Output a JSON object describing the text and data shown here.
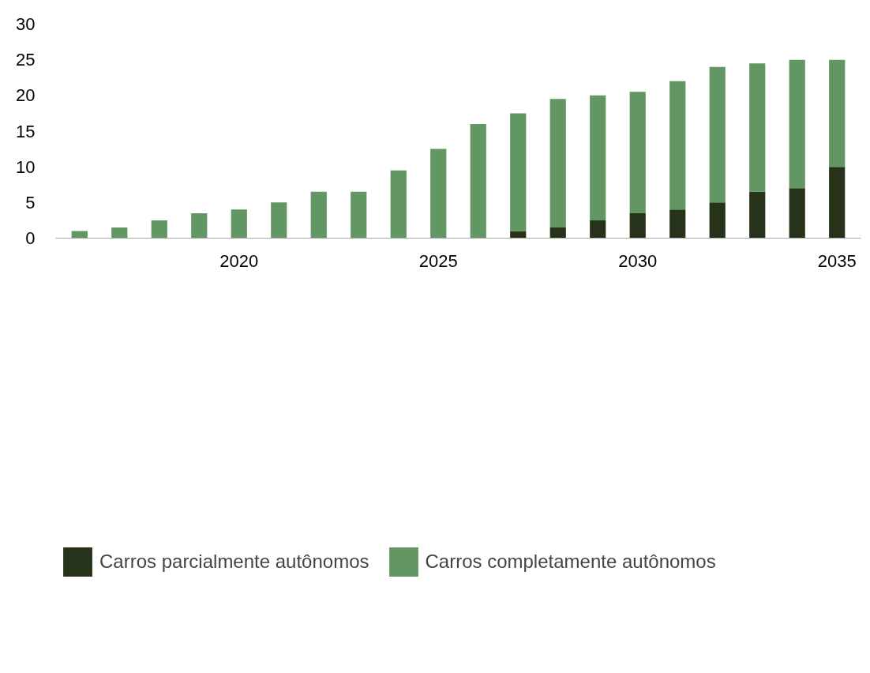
{
  "chart_data": {
    "type": "bar",
    "stacked": true,
    "x": [
      2016,
      2017,
      2018,
      2019,
      2020,
      2021,
      2022,
      2023,
      2024,
      2025,
      2026,
      2027,
      2028,
      2029,
      2030,
      2031,
      2032,
      2033,
      2034,
      2035
    ],
    "series": [
      {
        "name": "Carros parcialmente autônomos",
        "color": "#263219",
        "values": [
          0,
          0,
          0,
          0,
          0,
          0,
          0,
          0,
          0,
          0,
          0,
          1,
          1.5,
          2.5,
          3.5,
          4,
          5,
          6.5,
          7,
          10
        ]
      },
      {
        "name": "Carros completamente autônomos",
        "color": "#629662",
        "values": [
          1,
          1.5,
          2.5,
          3.5,
          4,
          5,
          6.5,
          6.5,
          9.5,
          12.5,
          16,
          16.5,
          18,
          17.5,
          17,
          18,
          19,
          18,
          18,
          15
        ]
      }
    ],
    "xlim": [
      2015.4,
      2035.6
    ],
    "xticks": [
      2020,
      2025,
      2030,
      2035
    ],
    "ylim": [
      0,
      30
    ],
    "yticks": [
      0,
      5,
      10,
      15,
      20,
      25,
      30
    ],
    "grid": false,
    "legend": "bottom"
  }
}
